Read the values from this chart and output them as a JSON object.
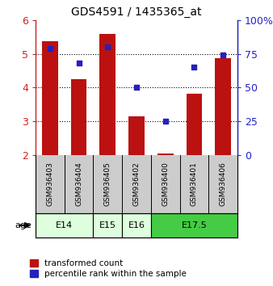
{
  "title": "GDS4591 / 1435365_at",
  "samples": [
    "GSM936403",
    "GSM936404",
    "GSM936405",
    "GSM936402",
    "GSM936400",
    "GSM936401",
    "GSM936406"
  ],
  "bar_values": [
    5.38,
    4.25,
    5.58,
    3.15,
    2.05,
    3.82,
    4.88
  ],
  "bar_bottom": 2.0,
  "percentile_right": [
    79,
    68,
    80,
    50,
    25,
    65,
    74
  ],
  "ylim_left": [
    2,
    6
  ],
  "ylim_right": [
    0,
    100
  ],
  "yticks_left": [
    2,
    3,
    4,
    5,
    6
  ],
  "yticks_right": [
    0,
    25,
    50,
    75,
    100
  ],
  "bar_color": "#bb1111",
  "dot_color": "#2222bb",
  "age_groups": [
    {
      "label": "E14",
      "start": 0,
      "end": 2,
      "color": "#ddffdd"
    },
    {
      "label": "E15",
      "start": 2,
      "end": 3,
      "color": "#ddffdd"
    },
    {
      "label": "E16",
      "start": 3,
      "end": 4,
      "color": "#ddffdd"
    },
    {
      "label": "E17.5",
      "start": 4,
      "end": 7,
      "color": "#44cc44"
    }
  ],
  "legend_bar_label": "transformed count",
  "legend_dot_label": "percentile rank within the sample",
  "age_label": "age",
  "left_axis_color": "#cc2222",
  "right_axis_color": "#2222cc",
  "sample_box_color": "#cccccc",
  "bar_width": 0.55
}
